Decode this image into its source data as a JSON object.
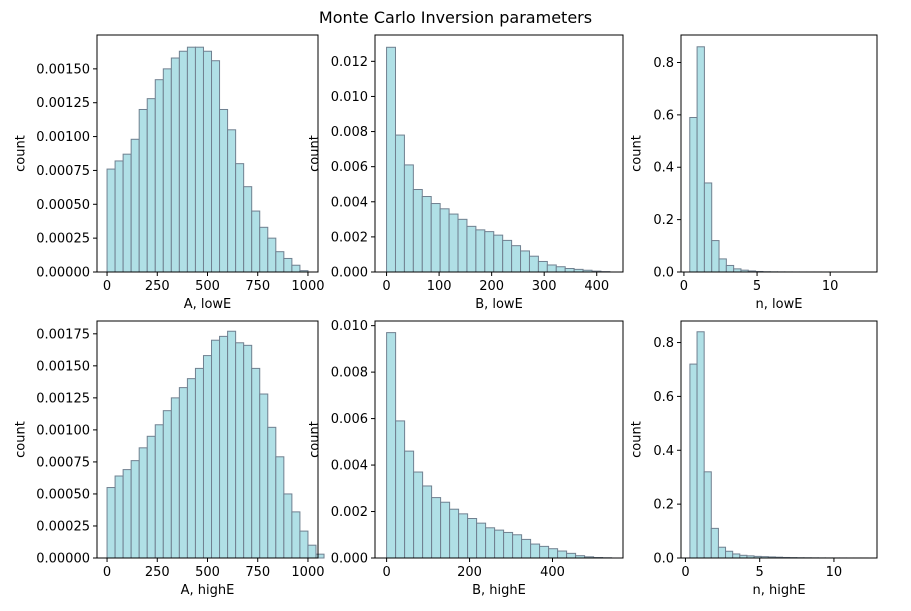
{
  "title": "Monte Carlo Inversion parameters",
  "style": {
    "bar_fill": "#b0e0e6",
    "bar_edge": "#708090"
  },
  "chart_data": [
    {
      "type": "bar",
      "xlabel": "A, lowE",
      "ylabel": "count",
      "bin_start": 0,
      "bin_width": 40,
      "values": [
        0.00076,
        0.00082,
        0.00087,
        0.00098,
        0.0012,
        0.00128,
        0.00142,
        0.0015,
        0.00158,
        0.00163,
        0.00166,
        0.00166,
        0.00163,
        0.00156,
        0.0012,
        0.00105,
        0.0008,
        0.00063,
        0.00045,
        0.00033,
        0.00025,
        0.00015,
        0.0001,
        5e-05,
        1e-05
      ],
      "xlim": [
        -50,
        1050
      ],
      "ylim": [
        0,
        0.00175
      ],
      "xticks": [
        0,
        250,
        500,
        750,
        1000
      ],
      "xtick_labels": [
        "0",
        "250",
        "500",
        "750",
        "1000"
      ],
      "yticks": [
        0,
        0.00025,
        0.0005,
        0.00075,
        0.001,
        0.00125,
        0.0015
      ],
      "ytick_labels": [
        "0.00000",
        "0.00025",
        "0.00050",
        "0.00075",
        "0.00100",
        "0.00125",
        "0.00150"
      ]
    },
    {
      "type": "bar",
      "xlabel": "B, lowE",
      "ylabel": "count",
      "bin_start": 0,
      "bin_width": 17,
      "values": [
        0.0128,
        0.0078,
        0.0061,
        0.0047,
        0.0043,
        0.0039,
        0.0036,
        0.0033,
        0.003,
        0.0026,
        0.0024,
        0.0023,
        0.0021,
        0.0018,
        0.0015,
        0.0012,
        0.0009,
        0.0006,
        0.0004,
        0.0003,
        0.0002,
        0.00015,
        0.0001,
        5e-05,
        2e-05
      ],
      "xlim": [
        -22,
        450
      ],
      "ylim": [
        0,
        0.0135
      ],
      "xticks": [
        0,
        100,
        200,
        300,
        400
      ],
      "xtick_labels": [
        "0",
        "100",
        "200",
        "300",
        "400"
      ],
      "yticks": [
        0,
        0.002,
        0.004,
        0.006,
        0.008,
        0.01,
        0.012
      ],
      "ytick_labels": [
        "0.000",
        "0.002",
        "0.004",
        "0.006",
        "0.008",
        "0.010",
        "0.012"
      ]
    },
    {
      "type": "bar",
      "xlabel": "n, lowE",
      "ylabel": "count",
      "bin_start": 0.4,
      "bin_width": 0.5,
      "values": [
        0.59,
        0.86,
        0.34,
        0.12,
        0.05,
        0.025,
        0.012,
        0.007,
        0.004,
        0.002,
        0.001,
        0.0006,
        0.0004,
        0.0003,
        0.0002,
        0.0001,
        0.0001,
        0.0001,
        5e-05,
        5e-05,
        3e-05,
        3e-05,
        2e-05,
        1e-05,
        1e-05
      ],
      "xlim": [
        -0.2,
        13.2
      ],
      "ylim": [
        0,
        0.905
      ],
      "xticks": [
        0,
        5,
        10
      ],
      "xtick_labels": [
        "0",
        "5",
        "10"
      ],
      "yticks": [
        0,
        0.2,
        0.4,
        0.6,
        0.8
      ],
      "ytick_labels": [
        "0.0",
        "0.2",
        "0.4",
        "0.6",
        "0.8"
      ]
    },
    {
      "type": "bar",
      "xlabel": "A, highE",
      "ylabel": "count",
      "bin_start": 0,
      "bin_width": 40,
      "values": [
        0.00055,
        0.00064,
        0.00069,
        0.00076,
        0.00086,
        0.00095,
        0.00104,
        0.00115,
        0.00125,
        0.00133,
        0.0014,
        0.00148,
        0.00158,
        0.0017,
        0.00173,
        0.00177,
        0.00168,
        0.00166,
        0.00148,
        0.00128,
        0.00102,
        0.00079,
        0.0005,
        0.00036,
        0.00021,
        0.0001,
        3e-05
      ],
      "xlim": [
        -50,
        1050
      ],
      "ylim": [
        0,
        0.00185
      ],
      "xticks": [
        0,
        250,
        500,
        750,
        1000
      ],
      "xtick_labels": [
        "0",
        "250",
        "500",
        "750",
        "1000"
      ],
      "yticks": [
        0,
        0.00025,
        0.0005,
        0.00075,
        0.001,
        0.00125,
        0.0015,
        0.00175
      ],
      "ytick_labels": [
        "0.00000",
        "0.00025",
        "0.00050",
        "0.00075",
        "0.00100",
        "0.00125",
        "0.00150",
        "0.00175"
      ]
    },
    {
      "type": "bar",
      "xlabel": "B, highE",
      "ylabel": "count",
      "bin_start": 0,
      "bin_width": 21.7,
      "values": [
        0.0097,
        0.0059,
        0.0046,
        0.0037,
        0.0031,
        0.0026,
        0.0024,
        0.0021,
        0.0019,
        0.0017,
        0.0015,
        0.0013,
        0.0012,
        0.0011,
        0.001,
        0.0008,
        0.0006,
        0.0005,
        0.0004,
        0.0003,
        0.0002,
        0.0001,
        5e-05,
        2e-05,
        1e-05
      ],
      "xlim": [
        -28,
        570
      ],
      "ylim": [
        0,
        0.0102
      ],
      "xticks": [
        0,
        200,
        400
      ],
      "xtick_labels": [
        "0",
        "200",
        "400"
      ],
      "yticks": [
        0,
        0.002,
        0.004,
        0.006,
        0.008,
        0.01
      ],
      "ytick_labels": [
        "0.000",
        "0.002",
        "0.004",
        "0.006",
        "0.008",
        "0.010"
      ]
    },
    {
      "type": "bar",
      "xlabel": "n, highE",
      "ylabel": "count",
      "bin_start": 0.3,
      "bin_width": 0.48,
      "values": [
        0.72,
        0.84,
        0.32,
        0.11,
        0.04,
        0.025,
        0.015,
        0.01,
        0.008,
        0.006,
        0.005,
        0.004,
        0.003,
        0.002,
        0.0015,
        0.001,
        0.0008,
        0.0006,
        0.0004,
        0.0003,
        0.0002,
        0.0002,
        0.0001,
        0.0001,
        0.0001
      ],
      "xlim": [
        -0.3,
        12.9
      ],
      "ylim": [
        0,
        0.88
      ],
      "xticks": [
        0,
        5,
        10
      ],
      "xtick_labels": [
        "0",
        "5",
        "10"
      ],
      "yticks": [
        0,
        0.2,
        0.4,
        0.6,
        0.8
      ],
      "ytick_labels": [
        "0.0",
        "0.2",
        "0.4",
        "0.6",
        "0.8"
      ]
    }
  ]
}
